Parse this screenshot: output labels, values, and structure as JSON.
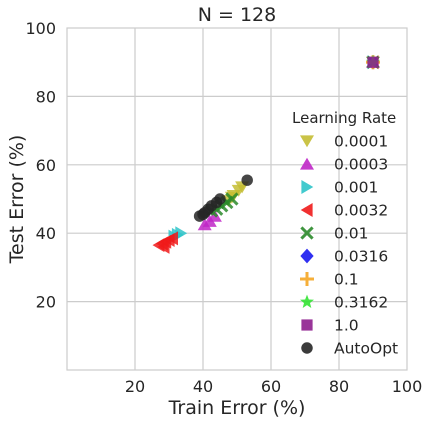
{
  "chart_data": {
    "type": "scatter",
    "title": "N = 128",
    "xlabel": "Train Error (%)",
    "ylabel": "Test Error (%)",
    "xlim": [
      0,
      100
    ],
    "ylim": [
      0,
      100
    ],
    "xticks": [
      20,
      40,
      60,
      80,
      100
    ],
    "yticks": [
      20,
      40,
      60,
      80,
      100
    ],
    "grid": true,
    "legend": {
      "title": "Learning Rate",
      "placement": "right"
    },
    "series": [
      {
        "name": "0.0001",
        "marker": "triangle-down",
        "color": "#c4bd33",
        "points": [
          [
            47.5,
            49.5
          ],
          [
            49,
            51
          ],
          [
            50.5,
            52.5
          ],
          [
            51.5,
            53.5
          ],
          [
            48.5,
            50.5
          ],
          [
            90,
            90
          ]
        ]
      },
      {
        "name": "0.0003",
        "marker": "triangle-up",
        "color": "#bf26c7",
        "points": [
          [
            40.5,
            42.5
          ],
          [
            42,
            43.5
          ],
          [
            43.5,
            45
          ],
          [
            90,
            90
          ]
        ]
      },
      {
        "name": "0.001",
        "marker": "triangle-right",
        "color": "#2ec4c9",
        "points": [
          [
            32.5,
            39.5
          ],
          [
            33.5,
            40
          ],
          [
            31.5,
            39
          ],
          [
            90,
            90
          ]
        ]
      },
      {
        "name": "0.0032",
        "marker": "triangle-left",
        "color": "#f01a1a",
        "points": [
          [
            27,
            36.5
          ],
          [
            28,
            37
          ],
          [
            29,
            37.5
          ],
          [
            30,
            38
          ],
          [
            31,
            38.5
          ],
          [
            28.5,
            36
          ],
          [
            90,
            90
          ]
        ]
      },
      {
        "name": "0.01",
        "marker": "x",
        "color": "#2a8a2a",
        "points": [
          [
            42.5,
            46.5
          ],
          [
            44,
            47
          ],
          [
            45.5,
            48
          ],
          [
            47,
            49
          ],
          [
            48.5,
            50
          ],
          [
            90,
            90
          ]
        ]
      },
      {
        "name": "0.0316",
        "marker": "diamond",
        "color": "#1a1af0",
        "points": [
          [
            90,
            90
          ]
        ]
      },
      {
        "name": "0.1",
        "marker": "plus",
        "color": "#f5a623",
        "points": [
          [
            90,
            90
          ]
        ]
      },
      {
        "name": "0.3162",
        "marker": "star",
        "color": "#33e333",
        "points": [
          [
            90,
            90
          ]
        ]
      },
      {
        "name": "1.0",
        "marker": "square",
        "color": "#8e1f8e",
        "points": [
          [
            90,
            90
          ]
        ]
      },
      {
        "name": "AutoOpt",
        "marker": "circle",
        "color": "#262626",
        "points": [
          [
            39,
            45
          ],
          [
            40.5,
            46
          ],
          [
            41.5,
            47
          ],
          [
            42.5,
            48
          ],
          [
            44,
            49
          ],
          [
            45,
            50
          ],
          [
            53,
            55.5
          ],
          [
            40,
            45.5
          ]
        ]
      }
    ]
  }
}
